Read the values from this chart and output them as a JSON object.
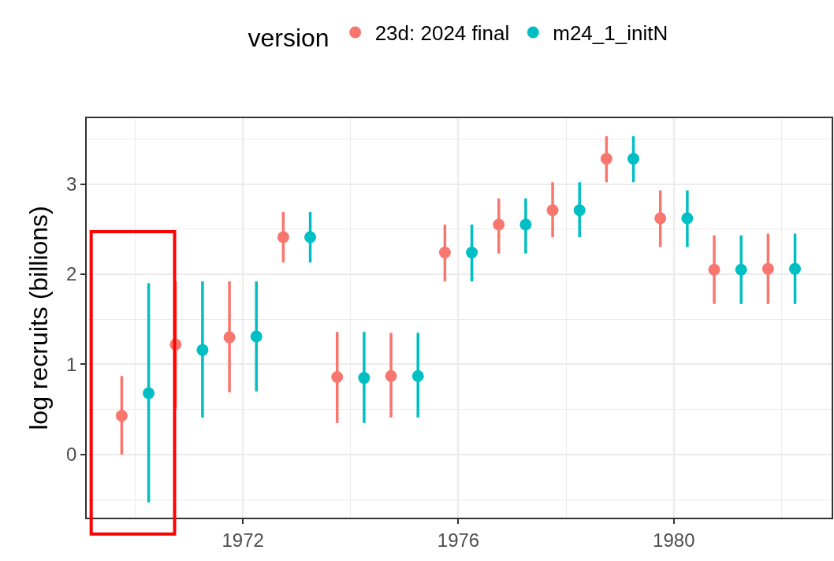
{
  "chart_data": {
    "type": "scatter",
    "ylabel": "log recruits (billions)",
    "legend_title": "version",
    "legend": "top",
    "grid": true,
    "marker": "circle",
    "xlim": [
      1969.1,
      1982.93
    ],
    "xticks": [
      1972,
      1976,
      1980
    ],
    "ylim": [
      -0.7,
      3.73
    ],
    "yticks": [
      0,
      1,
      2,
      3
    ],
    "series": [
      {
        "name": "23d: 2024 final",
        "color": "#f8766d",
        "x": [
          1969.75,
          1970.75,
          1971.75,
          1972.75,
          1973.75,
          1974.75,
          1975.75,
          1976.75,
          1977.75,
          1978.75,
          1979.75,
          1980.75,
          1981.75
        ],
        "values": [
          0.43,
          1.22,
          1.3,
          2.41,
          0.86,
          0.87,
          2.24,
          2.55,
          2.71,
          3.28,
          2.62,
          2.05,
          2.06
        ],
        "errors": [
          [
            0,
            0.87
          ],
          [
            0.51,
            1.92
          ],
          [
            0.69,
            1.92
          ],
          [
            2.13,
            2.69
          ],
          [
            0.35,
            1.36
          ],
          [
            0.41,
            1.35
          ],
          [
            1.92,
            2.55
          ],
          [
            2.23,
            2.84
          ],
          [
            2.41,
            3.02
          ],
          [
            3.02,
            3.53
          ],
          [
            2.3,
            2.93
          ],
          [
            1.67,
            2.43
          ],
          [
            1.67,
            2.45
          ]
        ]
      },
      {
        "name": "m24_1_initN",
        "color": "#00bfc4",
        "x": [
          1970.25,
          1971.25,
          1972.25,
          1973.25,
          1974.25,
          1975.25,
          1976.25,
          1977.25,
          1978.25,
          1979.25,
          1980.25,
          1981.25,
          1982.25
        ],
        "values": [
          0.68,
          1.16,
          1.31,
          2.41,
          0.85,
          0.87,
          2.24,
          2.55,
          2.71,
          3.28,
          2.62,
          2.05,
          2.06
        ],
        "errors": [
          [
            -0.53,
            1.9
          ],
          [
            0.41,
            1.92
          ],
          [
            0.7,
            1.92
          ],
          [
            2.13,
            2.69
          ],
          [
            0.35,
            1.36
          ],
          [
            0.41,
            1.35
          ],
          [
            1.92,
            2.55
          ],
          [
            2.23,
            2.84
          ],
          [
            2.41,
            3.02
          ],
          [
            3.02,
            3.53
          ],
          [
            2.3,
            2.93
          ],
          [
            1.67,
            2.43
          ],
          [
            1.67,
            2.45
          ]
        ]
      }
    ]
  }
}
